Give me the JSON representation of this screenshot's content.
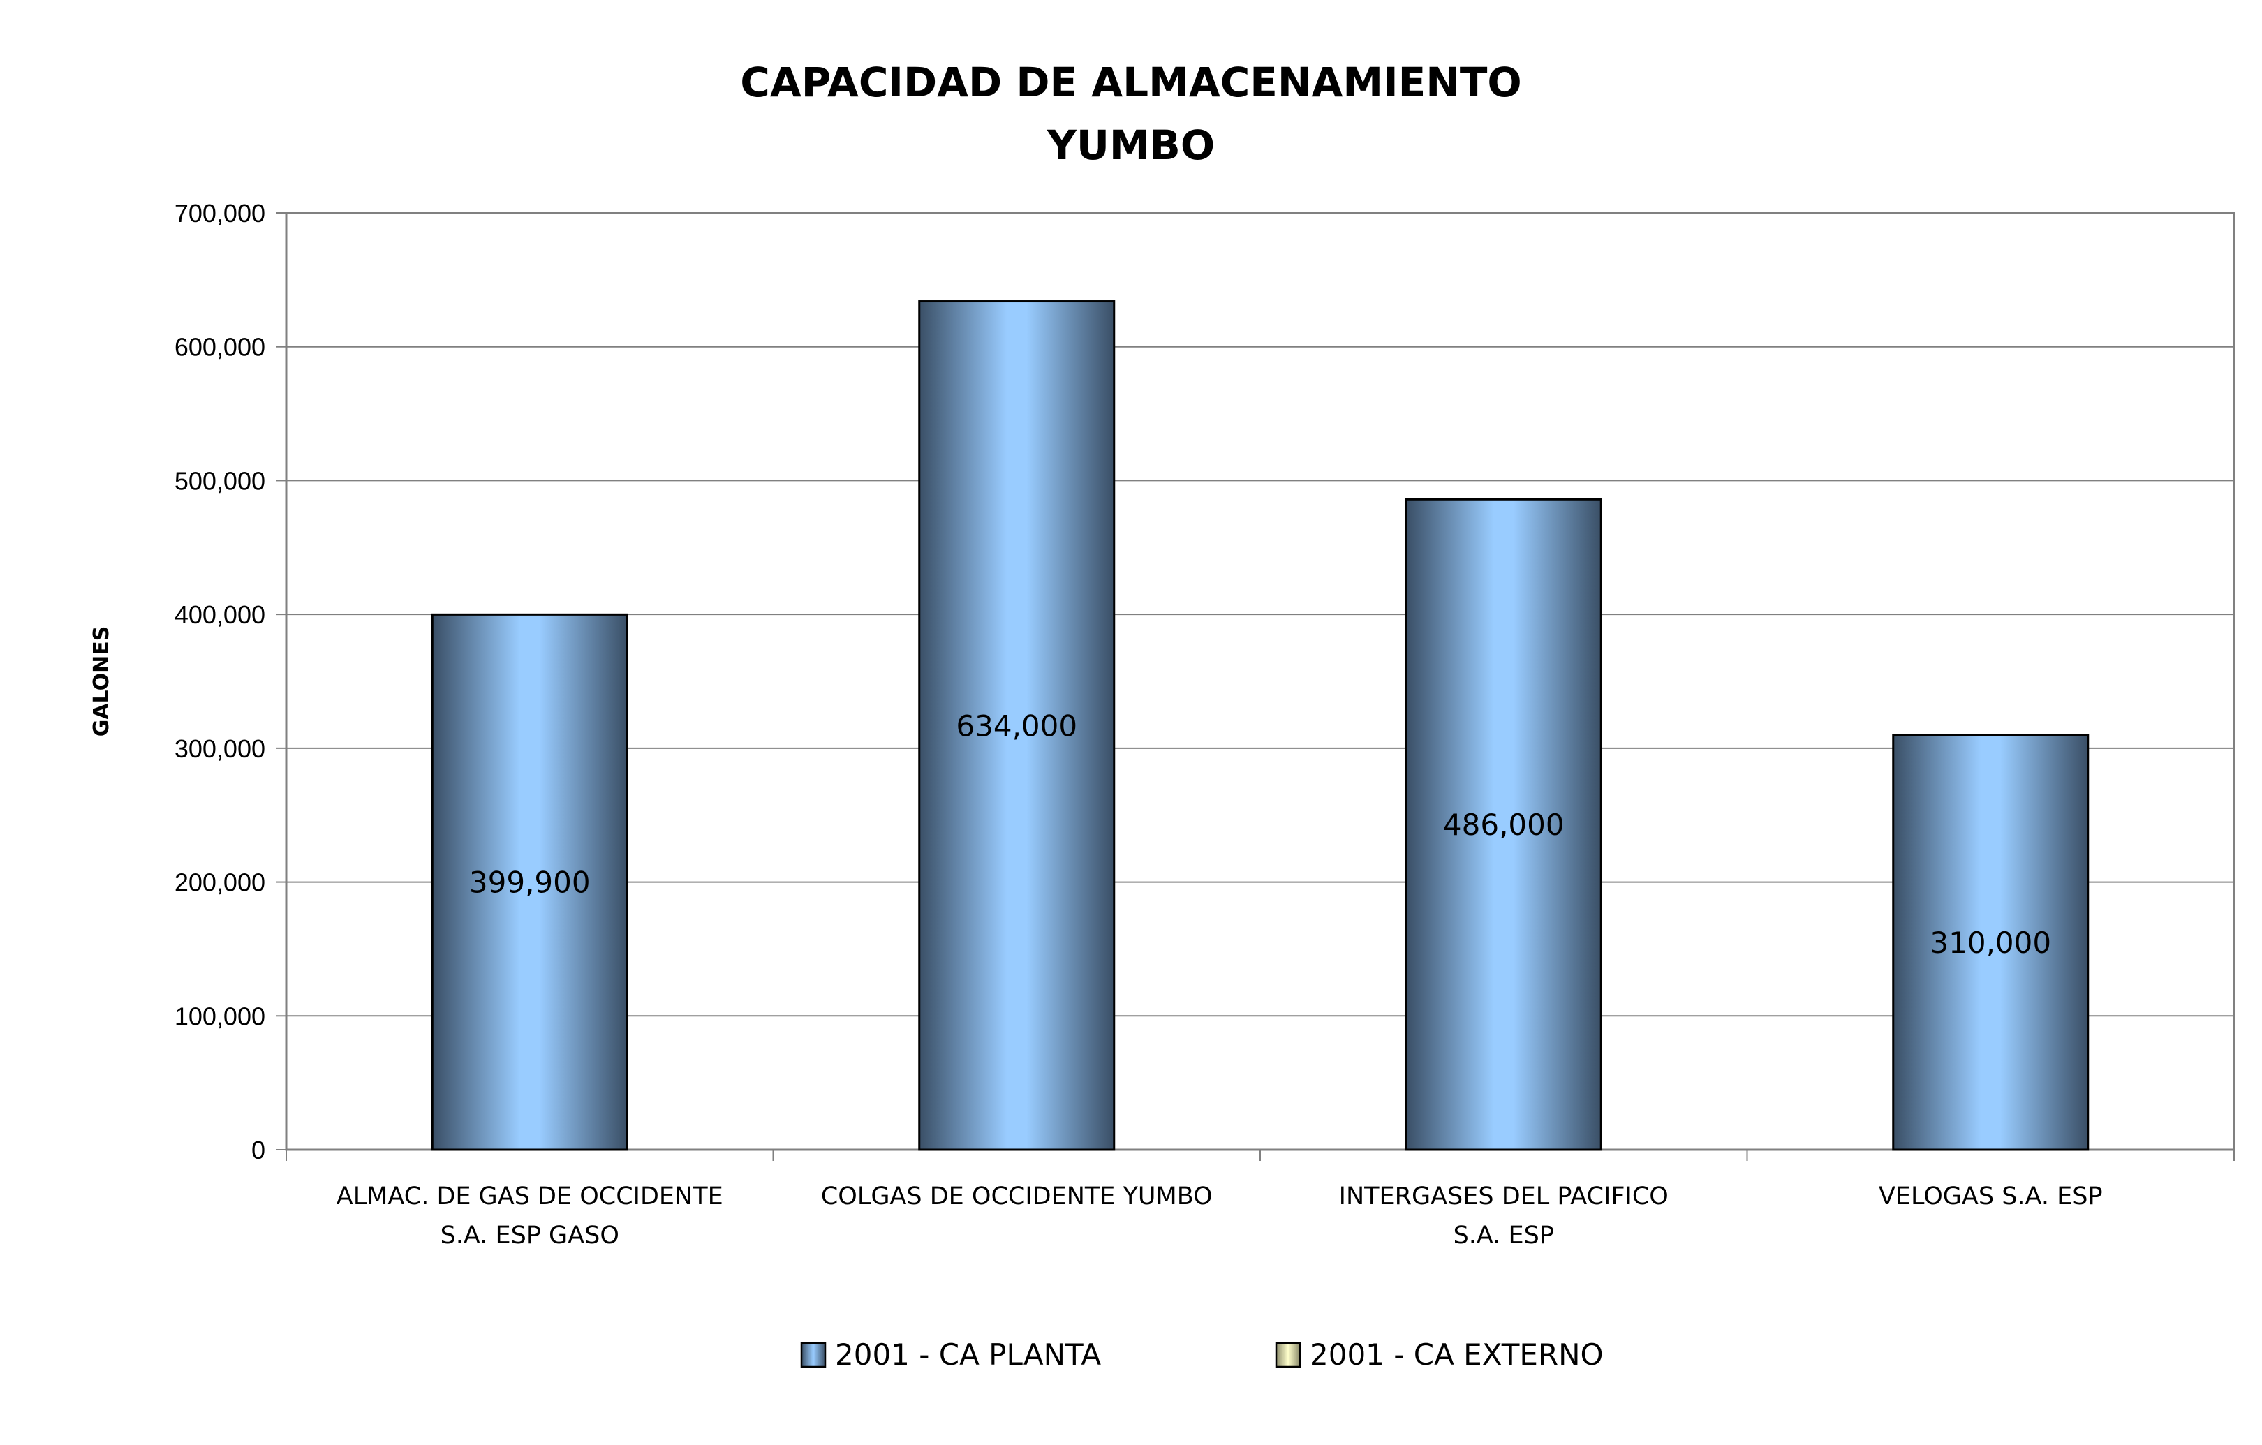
{
  "chart_data": {
    "type": "bar",
    "title_lines": [
      "CAPACIDAD DE ALMACENAMIENTO",
      "YUMBO"
    ],
    "ylabel": "GALONES",
    "xlabel": "",
    "ylim": [
      0,
      700000
    ],
    "y_ticks": [
      0,
      100000,
      200000,
      300000,
      400000,
      500000,
      600000,
      700000
    ],
    "y_tick_labels": [
      "0",
      "100,000",
      "200,000",
      "300,000",
      "400,000",
      "500,000",
      "600,000",
      "700,000"
    ],
    "grid": true,
    "categories": [
      [
        "ALMAC. DE GAS DE OCCIDENTE",
        "S.A. ESP GASO"
      ],
      [
        "COLGAS DE OCCIDENTE YUMBO"
      ],
      [
        "INTERGASES DEL PACIFICO",
        "S.A. ESP"
      ],
      [
        "VELOGAS S.A. ESP"
      ]
    ],
    "series": [
      {
        "name": "2001 - CA  PLANTA",
        "values": [
          399900,
          634000,
          486000,
          310000
        ],
        "data_labels": [
          "399,900",
          "634,000",
          "486,000",
          "310,000"
        ],
        "color": "#99ccff",
        "shade": "#4a6580"
      },
      {
        "name": "2001 - CA EXTERNO",
        "values": [
          0,
          0,
          0,
          0
        ],
        "color": "#ffffcc",
        "shade": "#8a8a6a"
      }
    ],
    "legend_position": "bottom"
  }
}
